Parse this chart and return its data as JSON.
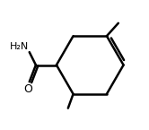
{
  "background_color": "#ffffff",
  "line_color": "#000000",
  "line_width": 1.8,
  "figsize": [
    1.66,
    1.45
  ],
  "dpi": 100,
  "text_H2N": "H₂N",
  "text_O": "O"
}
